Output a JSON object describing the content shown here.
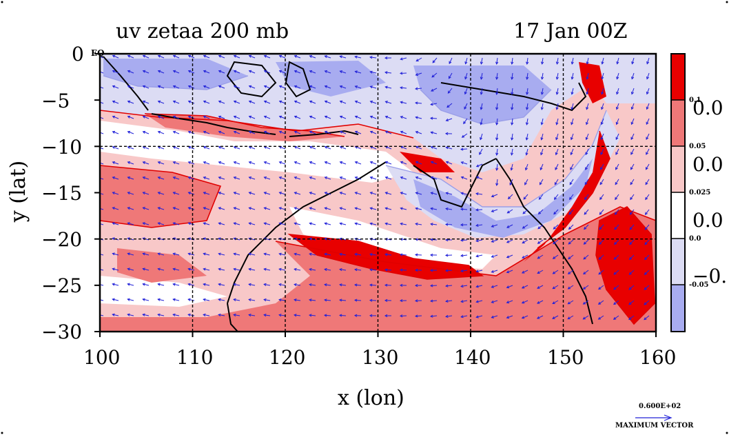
{
  "header": {
    "title": "uv zetaa 200 mb",
    "date": "17 Jan 00Z"
  },
  "axes": {
    "xlabel": "x (lon)",
    "ylabel": "y (lat)",
    "x_ticks": [
      "100",
      "110",
      "120",
      "130",
      "140",
      "150",
      "160"
    ],
    "y_ticks": [
      "0",
      "−5",
      "−10",
      "−15",
      "−20",
      "−25",
      "−30"
    ],
    "eq_label": "EQ",
    "xlim": [
      100,
      160
    ],
    "ylim": [
      -30,
      0
    ]
  },
  "colorbar": {
    "small_labels": [
      "0.1",
      "0.05",
      "0.025",
      "0.0",
      "-0.05"
    ],
    "large_labels": [
      "0.0",
      "0.0",
      "0.0",
      "−0."
    ],
    "colors": [
      "#e80000",
      "#ef7878",
      "#f8c8c8",
      "#ffffff",
      "#dcdcf4",
      "#a8acf0"
    ]
  },
  "vector_key": {
    "value": "0.600E+02",
    "label": "MAXIMUM VECTOR"
  },
  "style": {
    "positive_strong": "#e80000",
    "positive_mid": "#ef7878",
    "positive_weak": "#f8c8c8",
    "negative_weak": "#dcdcf4",
    "negative_mid": "#a8acf0",
    "contour_red": "#e00000",
    "contour_blue": "#9a9ee8",
    "vector_color": "#2020d8",
    "coastline": "#000000"
  }
}
